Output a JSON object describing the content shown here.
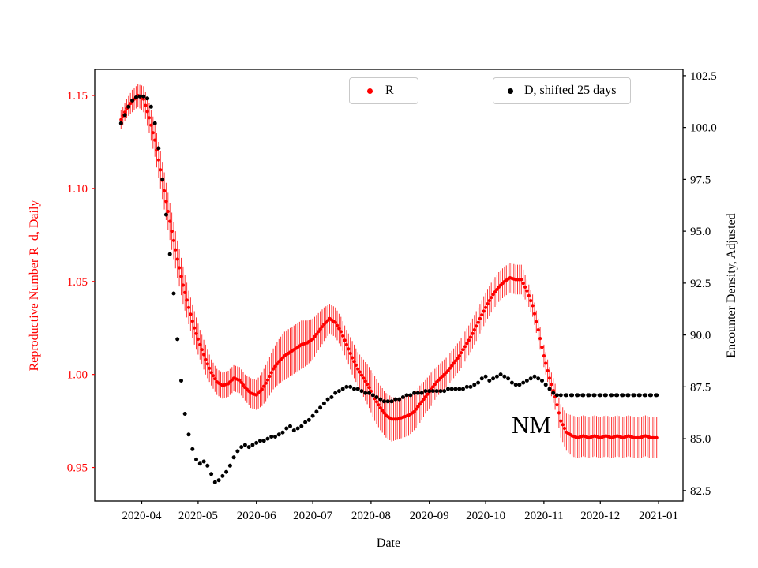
{
  "figure": {
    "background": "#ffffff",
    "annotation": {
      "text": "NM",
      "x": "2020-10-29",
      "y": 0.971
    },
    "legend_r": {
      "label": "R",
      "marker_color": "#ff0000"
    },
    "legend_d": {
      "label": "D, shifted 25 days",
      "marker_color": "#000000"
    }
  },
  "chart_data": {
    "type": "scatter",
    "title": "",
    "xlabel": "Date",
    "ylabel_left": "Reproductive Number R_d, Daily",
    "ylabel_right": "Encounter Density, Adjusted",
    "x_range": [
      "2020-03-07",
      "2021-01-14"
    ],
    "ylim_left": [
      0.932,
      1.164
    ],
    "ylim_right": [
      82.0,
      102.8
    ],
    "x_ticks": [
      "2020-04",
      "2020-05",
      "2020-06",
      "2020-07",
      "2020-08",
      "2020-09",
      "2020-10",
      "2020-11",
      "2020-12",
      "2021-01"
    ],
    "left_ticks": [
      0.95,
      1.0,
      1.05,
      1.1,
      1.15
    ],
    "right_ticks": [
      82.5,
      85.0,
      87.5,
      90.0,
      92.5,
      95.0,
      97.5,
      100.0,
      102.5
    ],
    "grid": false,
    "legend_position": "upper center / upper right",
    "series": [
      {
        "name": "R",
        "yaxis": "left",
        "color": "#ff0000",
        "marker": "point-with-errorbars",
        "points": [
          [
            "2020-03-21",
            1.137,
            0.005
          ],
          [
            "2020-03-24",
            1.143,
            0.005
          ],
          [
            "2020-03-27",
            1.147,
            0.006
          ],
          [
            "2020-03-30",
            1.15,
            0.006
          ],
          [
            "2020-04-02",
            1.148,
            0.007
          ],
          [
            "2020-04-05",
            1.138,
            0.008
          ],
          [
            "2020-04-08",
            1.126,
            0.009
          ],
          [
            "2020-04-11",
            1.11,
            0.01
          ],
          [
            "2020-04-14",
            1.093,
            0.01
          ],
          [
            "2020-04-17",
            1.077,
            0.01
          ],
          [
            "2020-04-20",
            1.062,
            0.01
          ],
          [
            "2020-04-23",
            1.048,
            0.01
          ],
          [
            "2020-04-26",
            1.036,
            0.009
          ],
          [
            "2020-04-29",
            1.025,
            0.009
          ],
          [
            "2020-05-02",
            1.016,
            0.008
          ],
          [
            "2020-05-05",
            1.008,
            0.008
          ],
          [
            "2020-05-08",
            1.001,
            0.007
          ],
          [
            "2020-05-11",
            0.996,
            0.007
          ],
          [
            "2020-05-14",
            0.994,
            0.007
          ],
          [
            "2020-05-17",
            0.995,
            0.007
          ],
          [
            "2020-05-20",
            0.998,
            0.007
          ],
          [
            "2020-05-23",
            0.997,
            0.007
          ],
          [
            "2020-05-26",
            0.993,
            0.007
          ],
          [
            "2020-05-29",
            0.99,
            0.008
          ],
          [
            "2020-06-01",
            0.989,
            0.008
          ],
          [
            "2020-06-04",
            0.992,
            0.009
          ],
          [
            "2020-06-07",
            0.997,
            0.01
          ],
          [
            "2020-06-10",
            1.003,
            0.011
          ],
          [
            "2020-06-13",
            1.007,
            0.012
          ],
          [
            "2020-06-16",
            1.01,
            0.013
          ],
          [
            "2020-06-19",
            1.012,
            0.013
          ],
          [
            "2020-06-22",
            1.014,
            0.013
          ],
          [
            "2020-06-25",
            1.016,
            0.013
          ],
          [
            "2020-06-28",
            1.017,
            0.012
          ],
          [
            "2020-07-01",
            1.019,
            0.011
          ],
          [
            "2020-07-04",
            1.023,
            0.01
          ],
          [
            "2020-07-07",
            1.027,
            0.009
          ],
          [
            "2020-07-10",
            1.03,
            0.008
          ],
          [
            "2020-07-13",
            1.028,
            0.008
          ],
          [
            "2020-07-16",
            1.023,
            0.008
          ],
          [
            "2020-07-19",
            1.016,
            0.008
          ],
          [
            "2020-07-22",
            1.009,
            0.009
          ],
          [
            "2020-07-25",
            1.003,
            0.009
          ],
          [
            "2020-07-28",
            0.998,
            0.01
          ],
          [
            "2020-07-31",
            0.993,
            0.011
          ],
          [
            "2020-08-03",
            0.987,
            0.012
          ],
          [
            "2020-08-06",
            0.982,
            0.012
          ],
          [
            "2020-08-09",
            0.978,
            0.012
          ],
          [
            "2020-08-12",
            0.976,
            0.012
          ],
          [
            "2020-08-15",
            0.976,
            0.011
          ],
          [
            "2020-08-18",
            0.977,
            0.011
          ],
          [
            "2020-08-21",
            0.978,
            0.011
          ],
          [
            "2020-08-24",
            0.98,
            0.01
          ],
          [
            "2020-08-27",
            0.984,
            0.01
          ],
          [
            "2020-08-30",
            0.988,
            0.009
          ],
          [
            "2020-09-02",
            0.992,
            0.009
          ],
          [
            "2020-09-05",
            0.996,
            0.008
          ],
          [
            "2020-09-08",
            0.999,
            0.008
          ],
          [
            "2020-09-11",
            1.002,
            0.008
          ],
          [
            "2020-09-14",
            1.006,
            0.008
          ],
          [
            "2020-09-17",
            1.01,
            0.008
          ],
          [
            "2020-09-20",
            1.015,
            0.008
          ],
          [
            "2020-09-23",
            1.02,
            0.008
          ],
          [
            "2020-09-26",
            1.026,
            0.008
          ],
          [
            "2020-09-29",
            1.032,
            0.008
          ],
          [
            "2020-10-02",
            1.038,
            0.008
          ],
          [
            "2020-10-05",
            1.043,
            0.008
          ],
          [
            "2020-10-08",
            1.047,
            0.008
          ],
          [
            "2020-10-11",
            1.05,
            0.008
          ],
          [
            "2020-10-14",
            1.052,
            0.008
          ],
          [
            "2020-10-17",
            1.051,
            0.008
          ],
          [
            "2020-10-20",
            1.051,
            0.008
          ],
          [
            "2020-10-23",
            1.045,
            0.006
          ],
          [
            "2020-10-26",
            1.037,
            0.006
          ],
          [
            "2020-10-29",
            1.024,
            0.006
          ],
          [
            "2020-11-01",
            1.01,
            0.006
          ],
          [
            "2020-11-04",
            0.998,
            0.006
          ],
          [
            "2020-11-07",
            0.988,
            0.007
          ],
          [
            "2020-11-10",
            0.975,
            0.009
          ],
          [
            "2020-11-13",
            0.969,
            0.01
          ],
          [
            "2020-11-16",
            0.967,
            0.011
          ],
          [
            "2020-11-19",
            0.966,
            0.011
          ],
          [
            "2020-11-22",
            0.967,
            0.011
          ],
          [
            "2020-11-25",
            0.966,
            0.011
          ],
          [
            "2020-11-28",
            0.967,
            0.011
          ],
          [
            "2020-12-01",
            0.966,
            0.011
          ],
          [
            "2020-12-04",
            0.967,
            0.011
          ],
          [
            "2020-12-07",
            0.966,
            0.011
          ],
          [
            "2020-12-10",
            0.967,
            0.011
          ],
          [
            "2020-12-13",
            0.966,
            0.011
          ],
          [
            "2020-12-16",
            0.967,
            0.011
          ],
          [
            "2020-12-19",
            0.966,
            0.011
          ],
          [
            "2020-12-22",
            0.966,
            0.011
          ],
          [
            "2020-12-25",
            0.967,
            0.011
          ],
          [
            "2020-12-28",
            0.966,
            0.011
          ],
          [
            "2020-12-31",
            0.966,
            0.011
          ]
        ]
      },
      {
        "name": "D, shifted 25 days",
        "yaxis": "right",
        "color": "#000000",
        "marker": "point",
        "points": [
          [
            "2020-03-21",
            100.2
          ],
          [
            "2020-03-23",
            100.6
          ],
          [
            "2020-03-25",
            101.0
          ],
          [
            "2020-03-27",
            101.3
          ],
          [
            "2020-03-29",
            101.45
          ],
          [
            "2020-03-31",
            101.5
          ],
          [
            "2020-04-02",
            101.5
          ],
          [
            "2020-04-04",
            101.4
          ],
          [
            "2020-04-06",
            101.0
          ],
          [
            "2020-04-08",
            100.2
          ],
          [
            "2020-04-10",
            99.0
          ],
          [
            "2020-04-12",
            97.5
          ],
          [
            "2020-04-14",
            95.8
          ],
          [
            "2020-04-16",
            93.9
          ],
          [
            "2020-04-18",
            92.0
          ],
          [
            "2020-04-20",
            89.8
          ],
          [
            "2020-04-22",
            87.8
          ],
          [
            "2020-04-24",
            86.2
          ],
          [
            "2020-04-26",
            85.2
          ],
          [
            "2020-04-28",
            84.5
          ],
          [
            "2020-04-30",
            84.0
          ],
          [
            "2020-05-02",
            83.8
          ],
          [
            "2020-05-04",
            83.9
          ],
          [
            "2020-05-06",
            83.7
          ],
          [
            "2020-05-08",
            83.3
          ],
          [
            "2020-05-10",
            82.9
          ],
          [
            "2020-05-12",
            83.0
          ],
          [
            "2020-05-14",
            83.2
          ],
          [
            "2020-05-16",
            83.4
          ],
          [
            "2020-05-18",
            83.7
          ],
          [
            "2020-05-20",
            84.1
          ],
          [
            "2020-05-22",
            84.4
          ],
          [
            "2020-05-24",
            84.6
          ],
          [
            "2020-05-26",
            84.7
          ],
          [
            "2020-05-28",
            84.6
          ],
          [
            "2020-05-30",
            84.7
          ],
          [
            "2020-06-01",
            84.8
          ],
          [
            "2020-06-03",
            84.9
          ],
          [
            "2020-06-05",
            84.9
          ],
          [
            "2020-06-07",
            85.0
          ],
          [
            "2020-06-09",
            85.1
          ],
          [
            "2020-06-11",
            85.1
          ],
          [
            "2020-06-13",
            85.2
          ],
          [
            "2020-06-15",
            85.3
          ],
          [
            "2020-06-17",
            85.5
          ],
          [
            "2020-06-19",
            85.6
          ],
          [
            "2020-06-21",
            85.4
          ],
          [
            "2020-06-23",
            85.5
          ],
          [
            "2020-06-25",
            85.6
          ],
          [
            "2020-06-27",
            85.8
          ],
          [
            "2020-06-29",
            85.9
          ],
          [
            "2020-07-01",
            86.1
          ],
          [
            "2020-07-03",
            86.3
          ],
          [
            "2020-07-05",
            86.5
          ],
          [
            "2020-07-07",
            86.7
          ],
          [
            "2020-07-09",
            86.9
          ],
          [
            "2020-07-11",
            87.0
          ],
          [
            "2020-07-13",
            87.2
          ],
          [
            "2020-07-15",
            87.3
          ],
          [
            "2020-07-17",
            87.4
          ],
          [
            "2020-07-19",
            87.5
          ],
          [
            "2020-07-21",
            87.5
          ],
          [
            "2020-07-23",
            87.4
          ],
          [
            "2020-07-25",
            87.4
          ],
          [
            "2020-07-27",
            87.3
          ],
          [
            "2020-07-29",
            87.2
          ],
          [
            "2020-07-31",
            87.2
          ],
          [
            "2020-08-02",
            87.1
          ],
          [
            "2020-08-04",
            87.0
          ],
          [
            "2020-08-06",
            86.9
          ],
          [
            "2020-08-08",
            86.8
          ],
          [
            "2020-08-10",
            86.8
          ],
          [
            "2020-08-12",
            86.8
          ],
          [
            "2020-08-14",
            86.9
          ],
          [
            "2020-08-16",
            86.9
          ],
          [
            "2020-08-18",
            87.0
          ],
          [
            "2020-08-20",
            87.1
          ],
          [
            "2020-08-22",
            87.1
          ],
          [
            "2020-08-24",
            87.2
          ],
          [
            "2020-08-26",
            87.2
          ],
          [
            "2020-08-28",
            87.2
          ],
          [
            "2020-08-30",
            87.3
          ],
          [
            "2020-09-01",
            87.3
          ],
          [
            "2020-09-03",
            87.3
          ],
          [
            "2020-09-05",
            87.3
          ],
          [
            "2020-09-07",
            87.3
          ],
          [
            "2020-09-09",
            87.3
          ],
          [
            "2020-09-11",
            87.4
          ],
          [
            "2020-09-13",
            87.4
          ],
          [
            "2020-09-15",
            87.4
          ],
          [
            "2020-09-17",
            87.4
          ],
          [
            "2020-09-19",
            87.4
          ],
          [
            "2020-09-21",
            87.5
          ],
          [
            "2020-09-23",
            87.5
          ],
          [
            "2020-09-25",
            87.6
          ],
          [
            "2020-09-27",
            87.7
          ],
          [
            "2020-09-29",
            87.9
          ],
          [
            "2020-10-01",
            88.0
          ],
          [
            "2020-10-03",
            87.8
          ],
          [
            "2020-10-05",
            87.9
          ],
          [
            "2020-10-07",
            88.0
          ],
          [
            "2020-10-09",
            88.1
          ],
          [
            "2020-10-11",
            88.0
          ],
          [
            "2020-10-13",
            87.9
          ],
          [
            "2020-10-15",
            87.7
          ],
          [
            "2020-10-17",
            87.6
          ],
          [
            "2020-10-19",
            87.6
          ],
          [
            "2020-10-21",
            87.7
          ],
          [
            "2020-10-23",
            87.8
          ],
          [
            "2020-10-25",
            87.9
          ],
          [
            "2020-10-27",
            88.0
          ],
          [
            "2020-10-29",
            87.9
          ],
          [
            "2020-10-31",
            87.8
          ],
          [
            "2020-11-02",
            87.6
          ],
          [
            "2020-11-04",
            87.4
          ],
          [
            "2020-11-06",
            87.2
          ],
          [
            "2020-11-08",
            87.1
          ],
          [
            "2020-11-10",
            87.1
          ],
          [
            "2020-11-13",
            87.1
          ],
          [
            "2020-11-16",
            87.1
          ],
          [
            "2020-11-19",
            87.1
          ],
          [
            "2020-11-22",
            87.1
          ],
          [
            "2020-11-25",
            87.1
          ],
          [
            "2020-11-28",
            87.1
          ],
          [
            "2020-12-01",
            87.1
          ],
          [
            "2020-12-04",
            87.1
          ],
          [
            "2020-12-07",
            87.1
          ],
          [
            "2020-12-10",
            87.1
          ],
          [
            "2020-12-13",
            87.1
          ],
          [
            "2020-12-16",
            87.1
          ],
          [
            "2020-12-19",
            87.1
          ],
          [
            "2020-12-22",
            87.1
          ],
          [
            "2020-12-25",
            87.1
          ],
          [
            "2020-12-28",
            87.1
          ],
          [
            "2020-12-31",
            87.1
          ]
        ]
      }
    ]
  }
}
